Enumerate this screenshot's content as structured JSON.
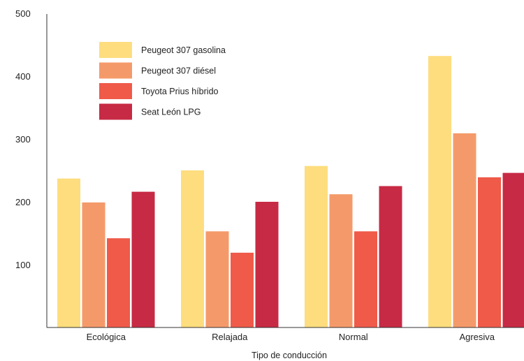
{
  "chart_data": {
    "type": "bar",
    "title": "",
    "xlabel": "Tipo de conducción",
    "ylabel": "",
    "categories": [
      "Ecológica",
      "Relajada",
      "Normal",
      "Agresiva"
    ],
    "series": [
      {
        "name": "Peugeot 307 gasolina",
        "color": "#fddd7e",
        "values": [
          237,
          250,
          257,
          432
        ]
      },
      {
        "name": "Peugeot 307 diésel",
        "color": "#f49a6a",
        "values": [
          199,
          153,
          212,
          309
        ]
      },
      {
        "name": "Toyota Prius híbrido",
        "color": "#ef5a49",
        "values": [
          142,
          119,
          153,
          239
        ]
      },
      {
        "name": "Seat León LPG",
        "color": "#c72a44",
        "values": [
          216,
          200,
          225,
          246
        ]
      }
    ],
    "ylim": [
      0,
      500
    ],
    "yticks": [
      500,
      400,
      300,
      200,
      100
    ],
    "grid": false,
    "legend_position": "top-left"
  }
}
